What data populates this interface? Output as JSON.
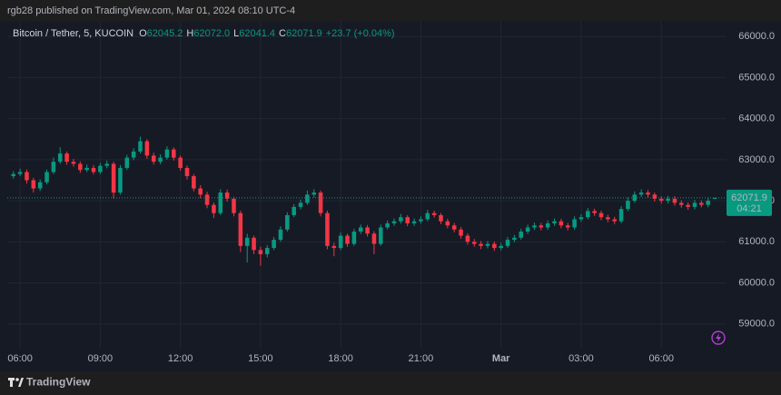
{
  "header": {
    "published": "rgb28 published on TradingView.com, Mar 01, 2024 08:10 UTC-4"
  },
  "footer": {
    "brand": "TradingView"
  },
  "chart_data": {
    "type": "candlestick",
    "symbol": "Bitcoin / Tether, 5, KUCOIN",
    "legend": [
      {
        "key": "O",
        "value": "62045.2"
      },
      {
        "key": "H",
        "value": "62072.0"
      },
      {
        "key": "L",
        "value": "62041.4"
      },
      {
        "key": "C",
        "value": "62071.9"
      }
    ],
    "change": "+23.7 (+0.04%)",
    "last_price_label": "62071.9",
    "countdown": "04:21",
    "up_color": "#089981",
    "down_color": "#f23645",
    "grid": true,
    "xlim": [
      5.52,
      32.44
    ],
    "xticks": [
      {
        "value": 6,
        "label": "06:00"
      },
      {
        "value": 9,
        "label": "09:00"
      },
      {
        "value": 12,
        "label": "12:00"
      },
      {
        "value": 15,
        "label": "15:00"
      },
      {
        "value": 18,
        "label": "18:00"
      },
      {
        "value": 21,
        "label": "21:00"
      },
      {
        "value": 24,
        "label": "Mar"
      },
      {
        "value": 27,
        "label": "03:00"
      },
      {
        "value": 30,
        "label": "06:00"
      }
    ],
    "ylim": [
      58420,
      66270
    ],
    "yticks": [
      {
        "value": 59000,
        "label": "59000.0"
      },
      {
        "value": 60000,
        "label": "60000.0"
      },
      {
        "value": 61000,
        "label": "61000.0"
      },
      {
        "value": 62000,
        "label": "62000.0"
      },
      {
        "value": 63000,
        "label": "63000.0"
      },
      {
        "value": 64000,
        "label": "64000.0"
      },
      {
        "value": 65000,
        "label": "65000.0"
      },
      {
        "value": 66000,
        "label": "66000.0"
      }
    ],
    "x": [
      5.75,
      6,
      6.25,
      6.5,
      6.75,
      7,
      7.25,
      7.5,
      7.75,
      8,
      8.25,
      8.5,
      8.75,
      9,
      9.25,
      9.5,
      9.75,
      10,
      10.25,
      10.5,
      10.75,
      11,
      11.25,
      11.5,
      11.75,
      12,
      12.25,
      12.5,
      12.75,
      13,
      13.25,
      13.5,
      13.75,
      14,
      14.25,
      14.5,
      14.75,
      15,
      15.25,
      15.5,
      15.75,
      16,
      16.25,
      16.5,
      16.75,
      17,
      17.25,
      17.5,
      17.75,
      18,
      18.25,
      18.5,
      18.75,
      19,
      19.25,
      19.5,
      19.75,
      20,
      20.25,
      20.5,
      20.75,
      21,
      21.25,
      21.5,
      21.75,
      22,
      22.25,
      22.5,
      22.75,
      23,
      23.25,
      23.5,
      23.75,
      24,
      24.25,
      24.5,
      24.75,
      25,
      25.25,
      25.5,
      25.75,
      26,
      26.25,
      26.5,
      26.75,
      27,
      27.25,
      27.5,
      27.75,
      28,
      28.25,
      28.5,
      28.75,
      29,
      29.25,
      29.5,
      29.75,
      30,
      30.25,
      30.5,
      30.75,
      31,
      31.25,
      31.5,
      31.75,
      32
    ],
    "open": [
      62600,
      62650,
      62700,
      62500,
      62300,
      62450,
      62700,
      62950,
      63150,
      62950,
      62900,
      62750,
      62800,
      62700,
      62850,
      62900,
      62200,
      62800,
      63050,
      63200,
      63450,
      63100,
      62950,
      63050,
      63250,
      63050,
      62800,
      62600,
      62300,
      62150,
      61900,
      61700,
      62200,
      62050,
      61700,
      60900,
      61100,
      60800,
      60700,
      60850,
      61050,
      61300,
      61650,
      61850,
      61950,
      62150,
      62200,
      61700,
      60900,
      60850,
      61150,
      60950,
      61250,
      61350,
      61200,
      60950,
      61350,
      61450,
      61500,
      61600,
      61450,
      61500,
      61550,
      61700,
      61650,
      61500,
      61400,
      61300,
      61150,
      61000,
      60950,
      60900,
      60950,
      60850,
      60900,
      61050,
      61100,
      61250,
      61350,
      61400,
      61350,
      61450,
      61500,
      61400,
      61350,
      61550,
      61600,
      61750,
      61700,
      61600,
      61550,
      61500,
      61800,
      62000,
      62150,
      62200,
      62150,
      62050,
      62000,
      62050,
      61950,
      61900,
      61850,
      61950,
      61900,
      62045.2
    ],
    "high": [
      62720,
      62780,
      62760,
      62560,
      62520,
      62760,
      63050,
      63300,
      63200,
      63020,
      62960,
      62880,
      62870,
      62920,
      62980,
      62950,
      62870,
      63120,
      63280,
      63560,
      63500,
      63170,
      63130,
      63330,
      63300,
      63100,
      62860,
      62650,
      62380,
      62220,
      61960,
      62280,
      62270,
      62100,
      61760,
      61200,
      61150,
      60880,
      60920,
      61120,
      61380,
      61720,
      61920,
      62030,
      62250,
      62280,
      62250,
      61760,
      60980,
      61230,
      61200,
      61320,
      61420,
      61410,
      61260,
      61420,
      61520,
      61570,
      61680,
      61650,
      61570,
      61620,
      61780,
      61760,
      61700,
      61560,
      61460,
      61360,
      61210,
      61070,
      61020,
      61020,
      61010,
      60970,
      61120,
      61170,
      61320,
      61420,
      61470,
      61460,
      61520,
      61570,
      61560,
      61460,
      61620,
      61670,
      61820,
      61810,
      61760,
      61660,
      61610,
      61870,
      62080,
      62230,
      62280,
      62260,
      62200,
      62110,
      62120,
      62110,
      62010,
      61960,
      62020,
      62010,
      62070,
      62072.0
    ],
    "low": [
      62540,
      62600,
      62420,
      62200,
      62240,
      62400,
      62650,
      62900,
      62880,
      62830,
      62680,
      62700,
      62640,
      62650,
      62790,
      62050,
      62150,
      62750,
      62990,
      63150,
      63020,
      62880,
      62890,
      63000,
      62980,
      62730,
      62520,
      62230,
      62060,
      61820,
      61580,
      61650,
      61980,
      61620,
      60750,
      60500,
      60700,
      60420,
      60620,
      60800,
      61000,
      61250,
      61600,
      61790,
      61900,
      62080,
      61620,
      60820,
      60650,
      60800,
      60880,
      60900,
      61190,
      61130,
      60700,
      60900,
      61300,
      61390,
      61440,
      61380,
      61390,
      61440,
      61500,
      61590,
      61430,
      61330,
      61230,
      61080,
      60930,
      60880,
      60820,
      60840,
      60780,
      60790,
      60850,
      60990,
      61050,
      61190,
      61290,
      61280,
      61290,
      61390,
      61330,
      61280,
      61290,
      61490,
      61550,
      61630,
      61530,
      61480,
      61430,
      61450,
      61750,
      61950,
      62090,
      62080,
      61980,
      61930,
      61940,
      61880,
      61830,
      61780,
      61790,
      61840,
      61840,
      62041.4
    ],
    "close": [
      62650,
      62700,
      62500,
      62300,
      62450,
      62700,
      62950,
      63150,
      62950,
      62900,
      62750,
      62800,
      62700,
      62850,
      62900,
      62200,
      62800,
      63050,
      63200,
      63450,
      63100,
      62950,
      63050,
      63250,
      63050,
      62800,
      62600,
      62300,
      62150,
      61900,
      61700,
      62200,
      62050,
      61700,
      60900,
      61100,
      60800,
      60700,
      60850,
      61050,
      61300,
      61650,
      61850,
      61950,
      62150,
      62200,
      61700,
      60900,
      60850,
      61150,
      60950,
      61250,
      61350,
      61200,
      60950,
      61350,
      61450,
      61500,
      61600,
      61450,
      61500,
      61550,
      61700,
      61650,
      61500,
      61400,
      61300,
      61150,
      61000,
      60950,
      60900,
      60950,
      60850,
      60900,
      61050,
      61100,
      61250,
      61350,
      61400,
      61350,
      61450,
      61500,
      61400,
      61350,
      61550,
      61600,
      61750,
      61700,
      61600,
      61550,
      61500,
      61800,
      62000,
      62150,
      62200,
      62150,
      62050,
      62000,
      62050,
      61950,
      61900,
      61850,
      61950,
      61900,
      62000,
      62071.9
    ]
  }
}
